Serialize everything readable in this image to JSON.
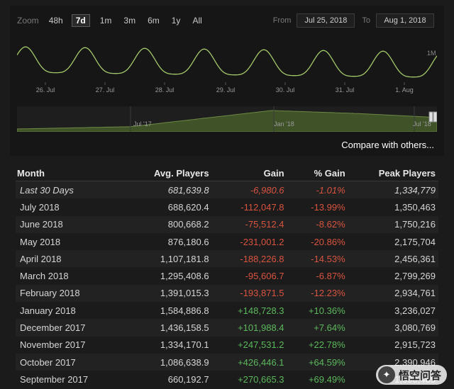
{
  "toolbar": {
    "zoom_label": "Zoom",
    "zoom_options": [
      "48h",
      "7d",
      "1m",
      "3m",
      "6m",
      "1y",
      "All"
    ],
    "active_zoom": "7d",
    "from_label": "From",
    "from_value": "Jul 25, 2018",
    "to_label": "To",
    "to_value": "Aug 1, 2018"
  },
  "chart_data": {
    "type": "line",
    "y_axis_label": "1M",
    "x_ticks": [
      "26. Jul",
      "27. Jul",
      "28. Jul",
      "29. Jul",
      "30. Jul",
      "31. Jul",
      "1. Aug"
    ],
    "series_color": "#a4c96a",
    "navigator_ticks": [
      "Jul '17",
      "Jan '18",
      "Jul '18"
    ]
  },
  "compare_link": "Compare with others...",
  "table": {
    "headers": [
      "Month",
      "Avg. Players",
      "Gain",
      "% Gain",
      "Peak Players"
    ],
    "rows": [
      {
        "month": "Last 30 Days",
        "avg": "681,639.8",
        "gain": "-6,980.6",
        "pct": "-1.01%",
        "peak": "1,334,779"
      },
      {
        "month": "July 2018",
        "avg": "688,620.4",
        "gain": "-112,047.8",
        "pct": "-13.99%",
        "peak": "1,350,463"
      },
      {
        "month": "June 2018",
        "avg": "800,668.2",
        "gain": "-75,512.4",
        "pct": "-8.62%",
        "peak": "1,750,216"
      },
      {
        "month": "May 2018",
        "avg": "876,180.6",
        "gain": "-231,001.2",
        "pct": "-20.86%",
        "peak": "2,175,704"
      },
      {
        "month": "April 2018",
        "avg": "1,107,181.8",
        "gain": "-188,226.8",
        "pct": "-14.53%",
        "peak": "2,456,361"
      },
      {
        "month": "March 2018",
        "avg": "1,295,408.6",
        "gain": "-95,606.7",
        "pct": "-6.87%",
        "peak": "2,799,269"
      },
      {
        "month": "February 2018",
        "avg": "1,391,015.3",
        "gain": "-193,871.5",
        "pct": "-12.23%",
        "peak": "2,934,761"
      },
      {
        "month": "January 2018",
        "avg": "1,584,886.8",
        "gain": "+148,728.3",
        "pct": "+10.36%",
        "peak": "3,236,027"
      },
      {
        "month": "December 2017",
        "avg": "1,436,158.5",
        "gain": "+101,988.4",
        "pct": "+7.64%",
        "peak": "3,080,769"
      },
      {
        "month": "November 2017",
        "avg": "1,334,170.1",
        "gain": "+247,531.2",
        "pct": "+22.78%",
        "peak": "2,915,723"
      },
      {
        "month": "October 2017",
        "avg": "1,086,638.9",
        "gain": "+426,446.1",
        "pct": "+64.59%",
        "peak": "2,390,946"
      },
      {
        "month": "September 2017",
        "avg": "660,192.7",
        "gain": "+270,665.3",
        "pct": "+69.49%",
        "peak": "1,590,465"
      }
    ]
  },
  "watermark": {
    "text": "悟空问答"
  },
  "colors": {
    "negative": "#d9533f",
    "positive": "#5cb85c",
    "line": "#a4c96a"
  }
}
